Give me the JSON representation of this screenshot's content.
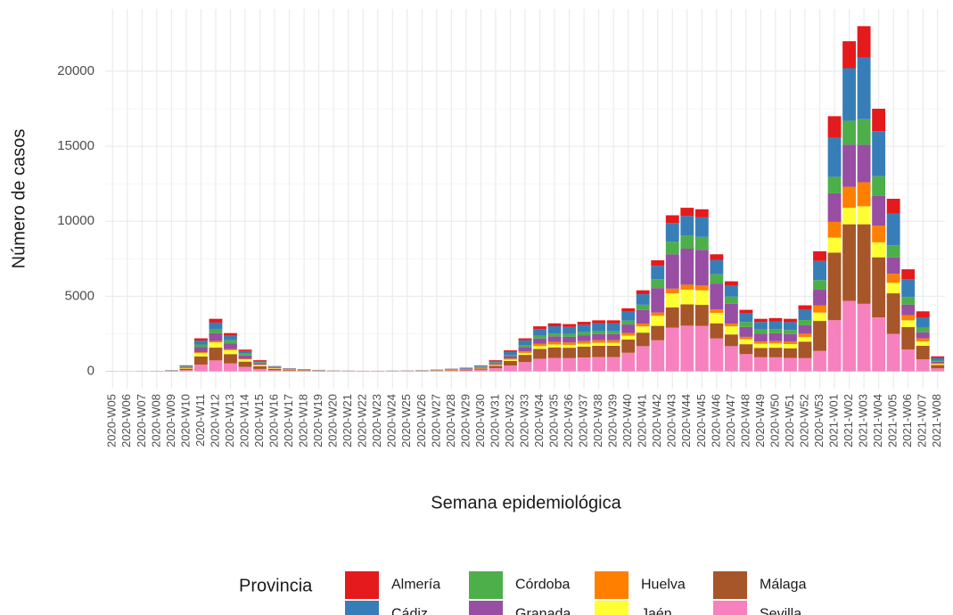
{
  "chart_data": {
    "type": "stacked_bar",
    "x_label": "Semana epidemiológica",
    "y_label": "Número de casos",
    "legend_title": "Provincia",
    "legend": "bottom",
    "grid": true,
    "categories": [
      "2020-W05",
      "2020-W06",
      "2020-W07",
      "2020-W08",
      "2020-W09",
      "2020-W10",
      "2020-W11",
      "2020-W12",
      "2020-W13",
      "2020-W14",
      "2020-W15",
      "2020-W16",
      "2020-W17",
      "2020-W18",
      "2020-W19",
      "2020-W20",
      "2020-W21",
      "2020-W22",
      "2020-W23",
      "2020-W24",
      "2020-W25",
      "2020-W26",
      "2020-W27",
      "2020-W28",
      "2020-W29",
      "2020-W30",
      "2020-W31",
      "2020-W32",
      "2020-W33",
      "2020-W34",
      "2020-W35",
      "2020-W36",
      "2020-W37",
      "2020-W38",
      "2020-W39",
      "2020-W40",
      "2020-W41",
      "2020-W42",
      "2020-W43",
      "2020-W44",
      "2020-W45",
      "2020-W46",
      "2020-W47",
      "2020-W48",
      "2020-W49",
      "2020-W50",
      "2020-W51",
      "2020-W52",
      "2020-W53",
      "2021-W01",
      "2021-W02",
      "2021-W03",
      "2021-W04",
      "2021-W05",
      "2021-W06",
      "2021-W07",
      "2021-W08"
    ],
    "ylim": [
      -1150,
      24150
    ],
    "yticks": [
      0,
      5000,
      10000,
      15000,
      20000
    ],
    "series": [
      {
        "name": "Almería",
        "color": "#e41a1c",
        "values": [
          0,
          0,
          1,
          2,
          5,
          30,
          150,
          250,
          180,
          100,
          50,
          25,
          15,
          10,
          7,
          4,
          3,
          3,
          3,
          3,
          4,
          5,
          7,
          11,
          15,
          24,
          45,
          84,
          132,
          180,
          192,
          189,
          198,
          204,
          204,
          220,
          260,
          370,
          520,
          545,
          540,
          390,
          300,
          240,
          210,
          215,
          220,
          300,
          640,
          1440,
          1800,
          2100,
          1500,
          1000,
          650,
          400,
          100
        ]
      },
      {
        "name": "Cádiz",
        "color": "#377eb8",
        "values": [
          2,
          2,
          3,
          4,
          10,
          50,
          260,
          420,
          300,
          170,
          90,
          40,
          25,
          18,
          12,
          7,
          6,
          5,
          5,
          7,
          9,
          12,
          18,
          27,
          38,
          60,
          112,
          210,
          330,
          450,
          480,
          472,
          495,
          510,
          510,
          600,
          700,
          890,
          1250,
          1310,
          1300,
          940,
          720,
          570,
          500,
          510,
          520,
          680,
          1280,
          2600,
          3500,
          4100,
          3000,
          2100,
          1200,
          700,
          180
        ]
      },
      {
        "name": "Córdoba",
        "color": "#4daf4a",
        "values": [
          0,
          0,
          2,
          2,
          6,
          30,
          180,
          280,
          200,
          120,
          60,
          30,
          15,
          12,
          8,
          5,
          4,
          3,
          3,
          3,
          4,
          5,
          7,
          11,
          15,
          24,
          45,
          84,
          132,
          180,
          192,
          189,
          198,
          204,
          204,
          260,
          360,
          590,
          830,
          870,
          860,
          620,
          480,
          330,
          280,
          285,
          280,
          350,
          640,
          1100,
          1600,
          1700,
          1300,
          800,
          500,
          300,
          80
        ]
      },
      {
        "name": "Granada",
        "color": "#984ea3",
        "values": [
          2,
          2,
          4,
          6,
          12,
          60,
          330,
          520,
          380,
          220,
          110,
          50,
          30,
          22,
          15,
          9,
          7,
          6,
          6,
          6,
          7,
          10,
          14,
          22,
          30,
          48,
          90,
          168,
          264,
          360,
          384,
          378,
          396,
          408,
          408,
          560,
          900,
          1630,
          2290,
          2400,
          2380,
          1720,
          1320,
          660,
          520,
          530,
          500,
          560,
          1040,
          1900,
          2800,
          2500,
          2000,
          1100,
          700,
          400,
          100
        ]
      },
      {
        "name": "Huelva",
        "color": "#ff7f00",
        "values": [
          0,
          0,
          0,
          1,
          2,
          10,
          70,
          100,
          80,
          40,
          20,
          10,
          5,
          5,
          3,
          2,
          2,
          1,
          1,
          3,
          3,
          4,
          6,
          9,
          12,
          20,
          38,
          70,
          110,
          150,
          160,
          158,
          165,
          170,
          170,
          180,
          180,
          220,
          310,
          330,
          320,
          230,
          180,
          160,
          150,
          150,
          160,
          220,
          480,
          1050,
          1400,
          1600,
          1100,
          600,
          350,
          200,
          50
        ]
      },
      {
        "name": "Jaén",
        "color": "#ffff33",
        "values": [
          0,
          0,
          2,
          3,
          8,
          40,
          220,
          350,
          260,
          150,
          80,
          35,
          20,
          15,
          10,
          6,
          5,
          4,
          4,
          3,
          4,
          5,
          7,
          11,
          15,
          24,
          45,
          84,
          132,
          180,
          192,
          189,
          198,
          204,
          204,
          260,
          420,
          670,
          940,
          980,
          970,
          700,
          540,
          330,
          280,
          285,
          280,
          310,
          560,
          1000,
          1100,
          1200,
          1000,
          700,
          450,
          300,
          70
        ]
      },
      {
        "name": "Málaga",
        "color": "#a65628",
        "values": [
          3,
          3,
          4,
          6,
          20,
          100,
          540,
          850,
          620,
          350,
          180,
          85,
          50,
          38,
          25,
          15,
          12,
          10,
          10,
          12,
          13,
          17,
          26,
          40,
          55,
          88,
          165,
          308,
          484,
          660,
          704,
          693,
          726,
          748,
          748,
          880,
          900,
          960,
          1350,
          1420,
          1400,
          1010,
          780,
          660,
          620,
          640,
          640,
          1100,
          2000,
          4500,
          5100,
          5300,
          4000,
          2700,
          1500,
          900,
          220
        ]
      },
      {
        "name": "Sevilla",
        "color": "#f781bf",
        "values": [
          3,
          3,
          4,
          6,
          17,
          80,
          450,
          730,
          530,
          300,
          160,
          75,
          40,
          30,
          20,
          12,
          11,
          8,
          8,
          13,
          16,
          22,
          35,
          49,
          70,
          112,
          210,
          392,
          616,
          840,
          896,
          882,
          924,
          952,
          952,
          1240,
          1680,
          2070,
          2910,
          3045,
          3030,
          2190,
          1680,
          1150,
          940,
          935,
          900,
          880,
          1360,
          3410,
          4700,
          4500,
          3600,
          2500,
          1450,
          800,
          200
        ]
      }
    ]
  }
}
